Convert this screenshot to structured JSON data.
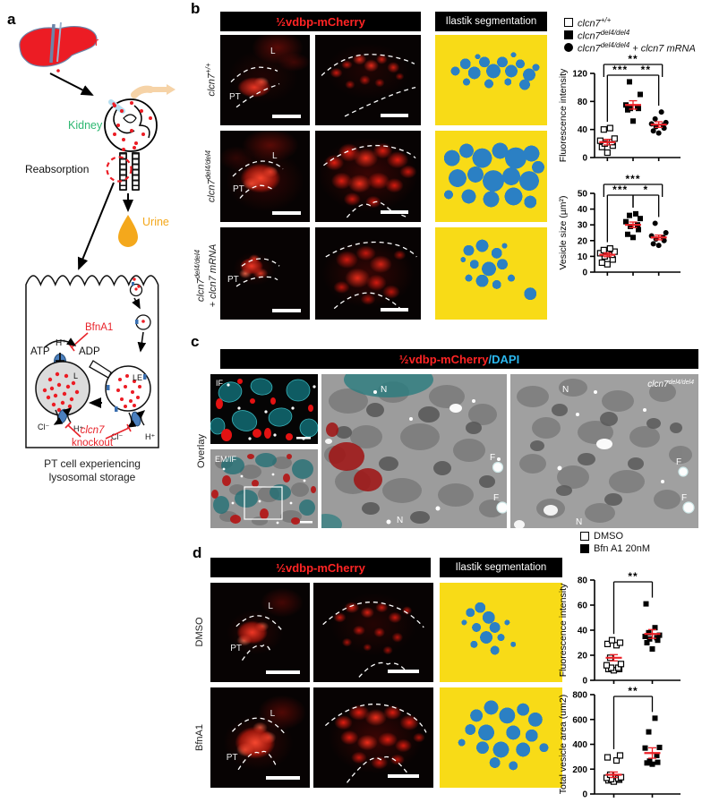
{
  "figure": {
    "panel_labels": {
      "a": "a",
      "b": "b",
      "c": "c",
      "d": "d"
    }
  },
  "panel_a": {
    "liver_label": "Liver",
    "kidney_label": "Kidney",
    "reabsorption_label": "Reabsorption",
    "urine_label": "Urine",
    "bfna1_label": "BfnA1",
    "atp_label": "ATP",
    "adp_label": "ADP",
    "h_plus_label": "H⁺",
    "cl_minus_label": "Cl⁻",
    "lysosome_label": "L",
    "late_endosome_label": "LE",
    "knockout_line1": "clcn7",
    "knockout_line2": "knockout",
    "caption_line1": "PT cell experiencing",
    "caption_line2": "lysosomal storage"
  },
  "panel_b": {
    "header_mcherry": "½vdbp-mCherry",
    "header_segmentation": "Ilastik segmentation",
    "rows": [
      {
        "gene": "clcn7",
        "sup": "+/+"
      },
      {
        "gene": "clcn7",
        "sup": "del4/del4"
      },
      {
        "gene": "clcn7",
        "sup": "del4/del4",
        "extra": "+ clcn7 mRNA"
      }
    ],
    "labels": {
      "L": "L",
      "PT": "PT"
    },
    "legend": [
      {
        "marker": "open-square",
        "gene": "clcn7",
        "sup": "+/+",
        "extra": ""
      },
      {
        "marker": "filled-square",
        "gene": "clcn7",
        "sup": "del4/del4",
        "extra": ""
      },
      {
        "marker": "filled-circle",
        "gene": "clcn7",
        "sup": "del4/del4",
        "extra": " + clcn7 mRNA"
      }
    ]
  },
  "panel_c": {
    "header_red": "½vdbp-mCherry",
    "header_sep": "/",
    "header_blue": "DAPI",
    "labels": {
      "if": "IF",
      "emif": "EM/IF",
      "overlay": "Overlay",
      "n": "N",
      "f": "F",
      "genotype": "clcn7",
      "genotype_sup": "del4/del4"
    }
  },
  "panel_d": {
    "header_mcherry": "½vdbp-mCherry",
    "header_segmentation": "Ilastik segmentation",
    "rows": [
      "DMSO",
      "BfnA1"
    ],
    "labels": {
      "L": "L",
      "PT": "PT"
    },
    "legend": [
      {
        "marker": "open-square",
        "label": "DMSO"
      },
      {
        "marker": "filled-square",
        "label": "Bfn A1 20nM"
      }
    ]
  },
  "chart_data": [
    {
      "id": "chart-b-intensity",
      "type": "scatter",
      "title": "",
      "xlabel": "",
      "ylabel": "Fluorescence intensity",
      "ylim": [
        0,
        120
      ],
      "yticks": [
        0,
        40,
        80,
        120
      ],
      "groups": [
        {
          "name": "clcn7 +/+",
          "marker": "open-square",
          "values": [
            7,
            15,
            17,
            20,
            22,
            24,
            27,
            40,
            42
          ],
          "mean": 22,
          "sem": 4
        },
        {
          "name": "clcn7 del4/del4",
          "marker": "filled-square",
          "values": [
            52,
            68,
            70,
            70,
            72,
            75,
            90,
            108
          ],
          "mean": 75,
          "sem": 6
        },
        {
          "name": "clcn7 del4/del4 + clcn7 mRNA",
          "marker": "filled-circle",
          "values": [
            35,
            38,
            42,
            44,
            46,
            48,
            50,
            55,
            65
          ],
          "mean": 47,
          "sem": 4
        }
      ],
      "brackets": [
        {
          "from": 0,
          "to": 1,
          "label": "***",
          "level": 0
        },
        {
          "from": 1,
          "to": 2,
          "label": "**",
          "level": 0
        },
        {
          "from": 0,
          "to": 2,
          "label": "**",
          "level": 1
        }
      ]
    },
    {
      "id": "chart-b-vesicle",
      "type": "scatter",
      "title": "",
      "xlabel": "",
      "ylabel": "Vesicle size (µm²)",
      "ylim": [
        0,
        50
      ],
      "yticks": [
        0,
        10,
        20,
        30,
        40,
        50
      ],
      "groups": [
        {
          "name": "clcn7 +/+",
          "marker": "open-square",
          "values": [
            5,
            6,
            8,
            10,
            11,
            12,
            13,
            14,
            15
          ],
          "mean": 11,
          "sem": 1.2
        },
        {
          "name": "clcn7 del4/del4",
          "marker": "filled-square",
          "values": [
            22,
            24,
            27,
            29,
            30,
            32,
            34,
            36,
            37
          ],
          "mean": 30,
          "sem": 1.8
        },
        {
          "name": "clcn7 del4/del4 + clcn7 mRNA",
          "marker": "filled-circle",
          "values": [
            17,
            18,
            20,
            21,
            22,
            23,
            25,
            31
          ],
          "mean": 22,
          "sem": 1.5
        }
      ],
      "brackets": [
        {
          "from": 0,
          "to": 1,
          "label": "***",
          "level": 0
        },
        {
          "from": 1,
          "to": 2,
          "label": "*",
          "level": 0
        },
        {
          "from": 0,
          "to": 2,
          "label": "***",
          "level": 1
        }
      ]
    },
    {
      "id": "chart-d-intensity",
      "type": "scatter",
      "title": "",
      "xlabel": "",
      "ylabel": "Fluorescence intensity",
      "ylim": [
        0,
        80
      ],
      "yticks": [
        0,
        20,
        40,
        60,
        80
      ],
      "groups": [
        {
          "name": "DMSO",
          "marker": "open-square",
          "values": [
            8,
            9,
            9,
            10,
            10,
            12,
            13,
            18,
            28,
            29,
            30,
            32
          ],
          "mean": 18,
          "sem": 2.5
        },
        {
          "name": "Bfn A1 20nM",
          "marker": "filled-square",
          "values": [
            25,
            30,
            32,
            33,
            34,
            35,
            36,
            38,
            42,
            61
          ],
          "mean": 37,
          "sem": 3.5
        }
      ],
      "brackets": [
        {
          "from": 0,
          "to": 1,
          "label": "**",
          "level": 0
        }
      ]
    },
    {
      "id": "chart-d-area",
      "type": "scatter",
      "title": "",
      "xlabel": "",
      "ylabel": "Total vesicle area  (um2)",
      "ylim": [
        0,
        800
      ],
      "yticks": [
        0,
        200,
        400,
        600,
        800
      ],
      "groups": [
        {
          "name": "DMSO",
          "marker": "open-square",
          "values": [
            100,
            110,
            115,
            120,
            125,
            130,
            135,
            155,
            270,
            295,
            310
          ],
          "mean": 155,
          "sem": 22
        },
        {
          "name": "Bfn A1 20nM",
          "marker": "filled-square",
          "values": [
            240,
            250,
            255,
            265,
            310,
            370,
            375,
            500,
            610
          ],
          "mean": 330,
          "sem": 42
        }
      ],
      "brackets": [
        {
          "from": 0,
          "to": 1,
          "label": "**",
          "level": 0
        }
      ]
    }
  ]
}
